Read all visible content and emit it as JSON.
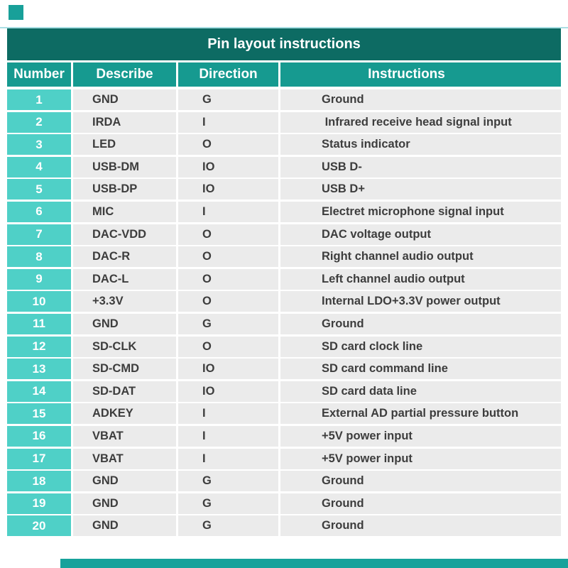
{
  "table": {
    "title": "Pin layout instructions",
    "columns": [
      "Number",
      "Describe",
      "Direction",
      "Instructions"
    ],
    "rows": [
      {
        "number": "1",
        "describe": "GND",
        "direction": "G",
        "instructions": "Ground"
      },
      {
        "number": "2",
        "describe": "IRDA",
        "direction": "I",
        "instructions": " Infrared receive head signal input"
      },
      {
        "number": "3",
        "describe": "LED",
        "direction": "O",
        "instructions": "Status indicator"
      },
      {
        "number": "4",
        "describe": "USB-DM",
        "direction": "IO",
        "instructions": "USB D-"
      },
      {
        "number": "5",
        "describe": "USB-DP",
        "direction": "IO",
        "instructions": "USB D+"
      },
      {
        "number": "6",
        "describe": "MIC",
        "direction": "I",
        "instructions": "Electret microphone signal input"
      },
      {
        "number": "7",
        "describe": "DAC-VDD",
        "direction": "O",
        "instructions": "DAC voltage output"
      },
      {
        "number": "8",
        "describe": "DAC-R",
        "direction": "O",
        "instructions": "Right channel audio output"
      },
      {
        "number": "9",
        "describe": "DAC-L",
        "direction": "O",
        "instructions": "Left channel audio output"
      },
      {
        "number": "10",
        "describe": "+3.3V",
        "direction": "O",
        "instructions": "Internal LDO+3.3V power output"
      },
      {
        "number": "11",
        "describe": "GND",
        "direction": "G",
        "instructions": "Ground"
      },
      {
        "number": "12",
        "describe": "SD-CLK",
        "direction": "O",
        "instructions": "SD card clock line"
      },
      {
        "number": "13",
        "describe": "SD-CMD",
        "direction": "IO",
        "instructions": "SD card command line"
      },
      {
        "number": "14",
        "describe": "SD-DAT",
        "direction": "IO",
        "instructions": "SD card data line"
      },
      {
        "number": "15",
        "describe": "ADKEY",
        "direction": "I",
        "instructions": "External AD partial pressure button"
      },
      {
        "number": "16",
        "describe": "VBAT",
        "direction": "I",
        "instructions": "+5V power input"
      },
      {
        "number": "17",
        "describe": "VBAT",
        "direction": "I",
        "instructions": "+5V power input"
      },
      {
        "number": "18",
        "describe": "GND",
        "direction": "G",
        "instructions": "Ground"
      },
      {
        "number": "19",
        "describe": "GND",
        "direction": "G",
        "instructions": "Ground"
      },
      {
        "number": "20",
        "describe": "GND",
        "direction": "G",
        "instructions": "Ground"
      }
    ]
  },
  "colors": {
    "title_bar": "#0d6b63",
    "header_row": "#169a90",
    "number_cell": "#4fd0c7",
    "row_background": "#ebebeb",
    "body_text": "#3d3d3d",
    "accent_line": "#aadfe4",
    "decor_teal": "#18a099"
  }
}
